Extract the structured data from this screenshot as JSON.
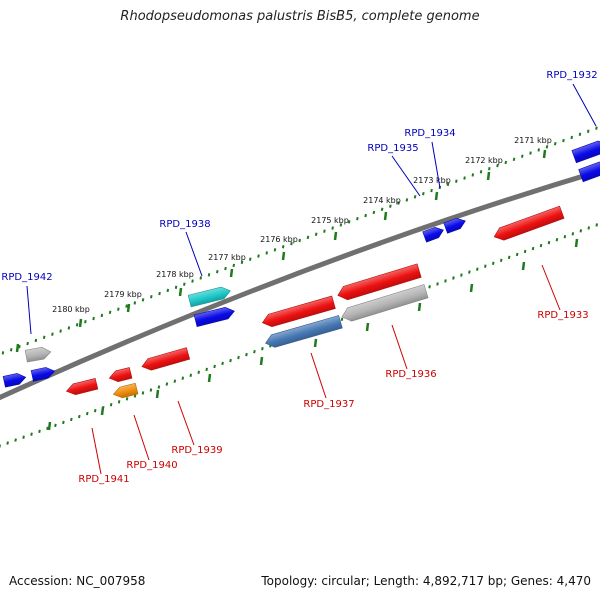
{
  "title": "Rhodopseudomonas palustris BisB5, complete genome",
  "footer": {
    "accession": "Accession: NC_007958",
    "topology": "Topology: circular; Length: 4,892,717 bp; Genes: 4,470"
  },
  "colors": {
    "backbone": "#707070",
    "ticks": "#1f7a1f",
    "forward_label": "#0000bb",
    "reverse_label": "#cc0000",
    "red": "#ee1111",
    "blue": "#0a0ae8",
    "grey": "#b4b4b4",
    "cyan": "#1ec8c8",
    "orange": "#f08c0a",
    "steelblue": "#4678b4"
  },
  "scale": {
    "unit": "kbp",
    "labels": [
      "2171 kbp",
      "2172 kbp",
      "2173 kbp",
      "2174 kbp",
      "2175 kbp",
      "2176 kbp",
      "2177 kbp",
      "2178 kbp",
      "2179 kbp",
      "2180 kbp"
    ]
  },
  "gene_labels": {
    "forward": [
      "RPD_1932",
      "RPD_1934",
      "RPD_1935",
      "RPD_1938",
      "RPD_1942"
    ],
    "reverse": [
      "RPD_1933",
      "RPD_1936",
      "RPD_1937",
      "RPD_1939",
      "RPD_1940",
      "RPD_1941"
    ]
  }
}
